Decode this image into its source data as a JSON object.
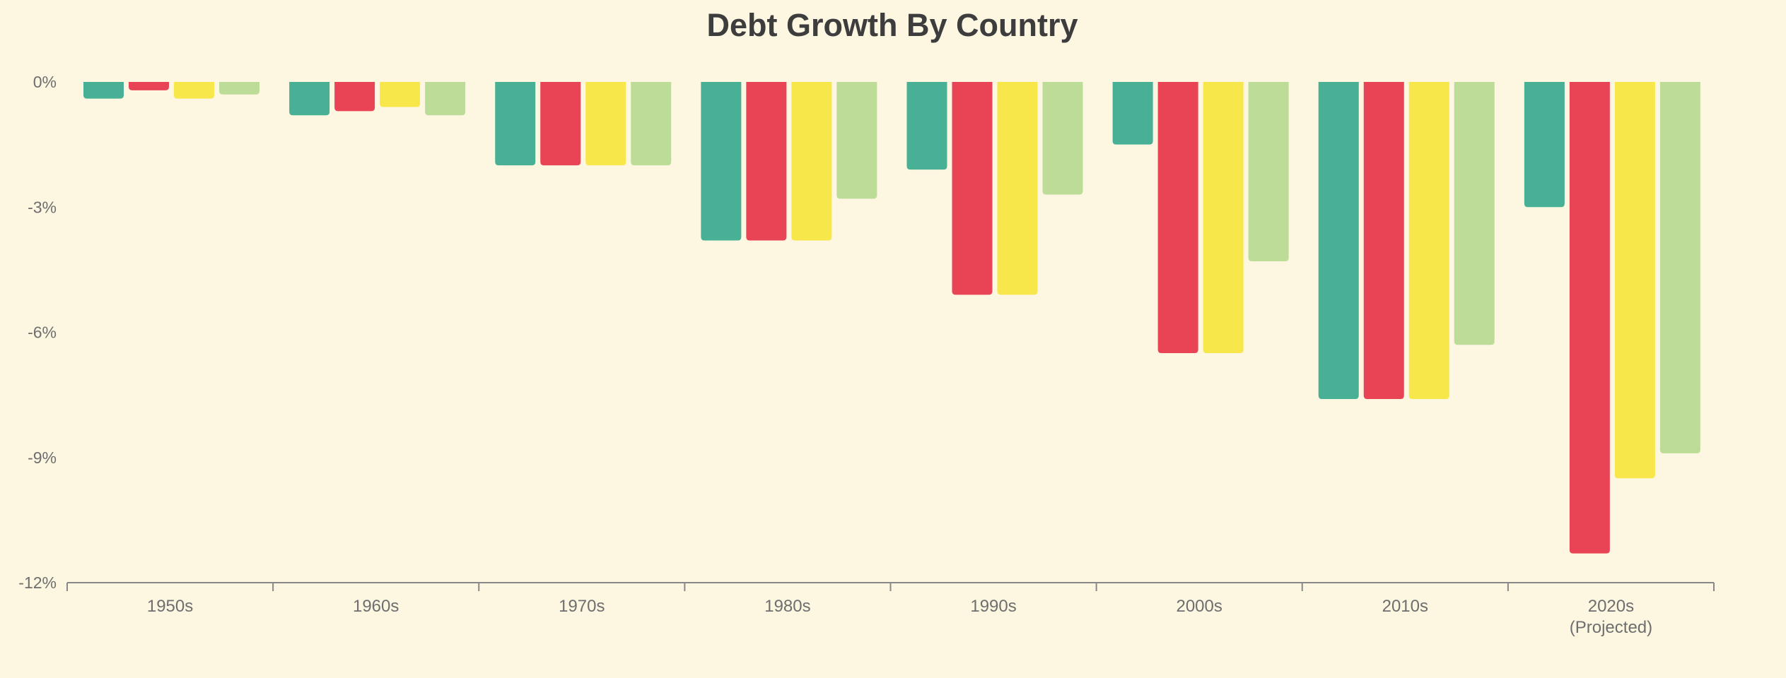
{
  "chart_data": {
    "type": "bar",
    "title": "Debt Growth By Country",
    "xlabel": "",
    "ylabel": "",
    "categories": [
      "1950s",
      "1960s",
      "1970s",
      "1980s",
      "1990s",
      "2000s",
      "2010s",
      "2020s"
    ],
    "category_sublabels": [
      "",
      "",
      "",
      "",
      "",
      "",
      "",
      "(Projected)"
    ],
    "ylim": [
      -12,
      0
    ],
    "y_ticks": [
      {
        "value": 0,
        "label": "0%"
      },
      {
        "value": -3,
        "label": "-3%"
      },
      {
        "value": -6,
        "label": "-6%"
      },
      {
        "value": -9,
        "label": "-9%"
      },
      {
        "value": -12,
        "label": "-12%"
      }
    ],
    "grid": false,
    "legend": "none",
    "series": [
      {
        "color": "#48b094",
        "values": [
          -0.4,
          -0.8,
          -2.0,
          -3.8,
          -2.1,
          -1.5,
          -7.6,
          -3.0
        ]
      },
      {
        "color": "#e84455",
        "values": [
          -0.2,
          -0.7,
          -2.0,
          -3.8,
          -5.1,
          -6.5,
          -7.6,
          -11.3
        ]
      },
      {
        "color": "#f7e74b",
        "values": [
          -0.4,
          -0.6,
          -2.0,
          -3.8,
          -5.1,
          -6.5,
          -7.6,
          -9.5
        ]
      },
      {
        "color": "#bddc98",
        "values": [
          -0.3,
          -0.8,
          -2.0,
          -2.8,
          -2.7,
          -4.3,
          -6.3,
          -8.9
        ]
      }
    ],
    "colors": {
      "background": "#fdf7e2",
      "axis": "#888888",
      "text": "#6e6e6e",
      "title": "#3d3d3d"
    }
  }
}
